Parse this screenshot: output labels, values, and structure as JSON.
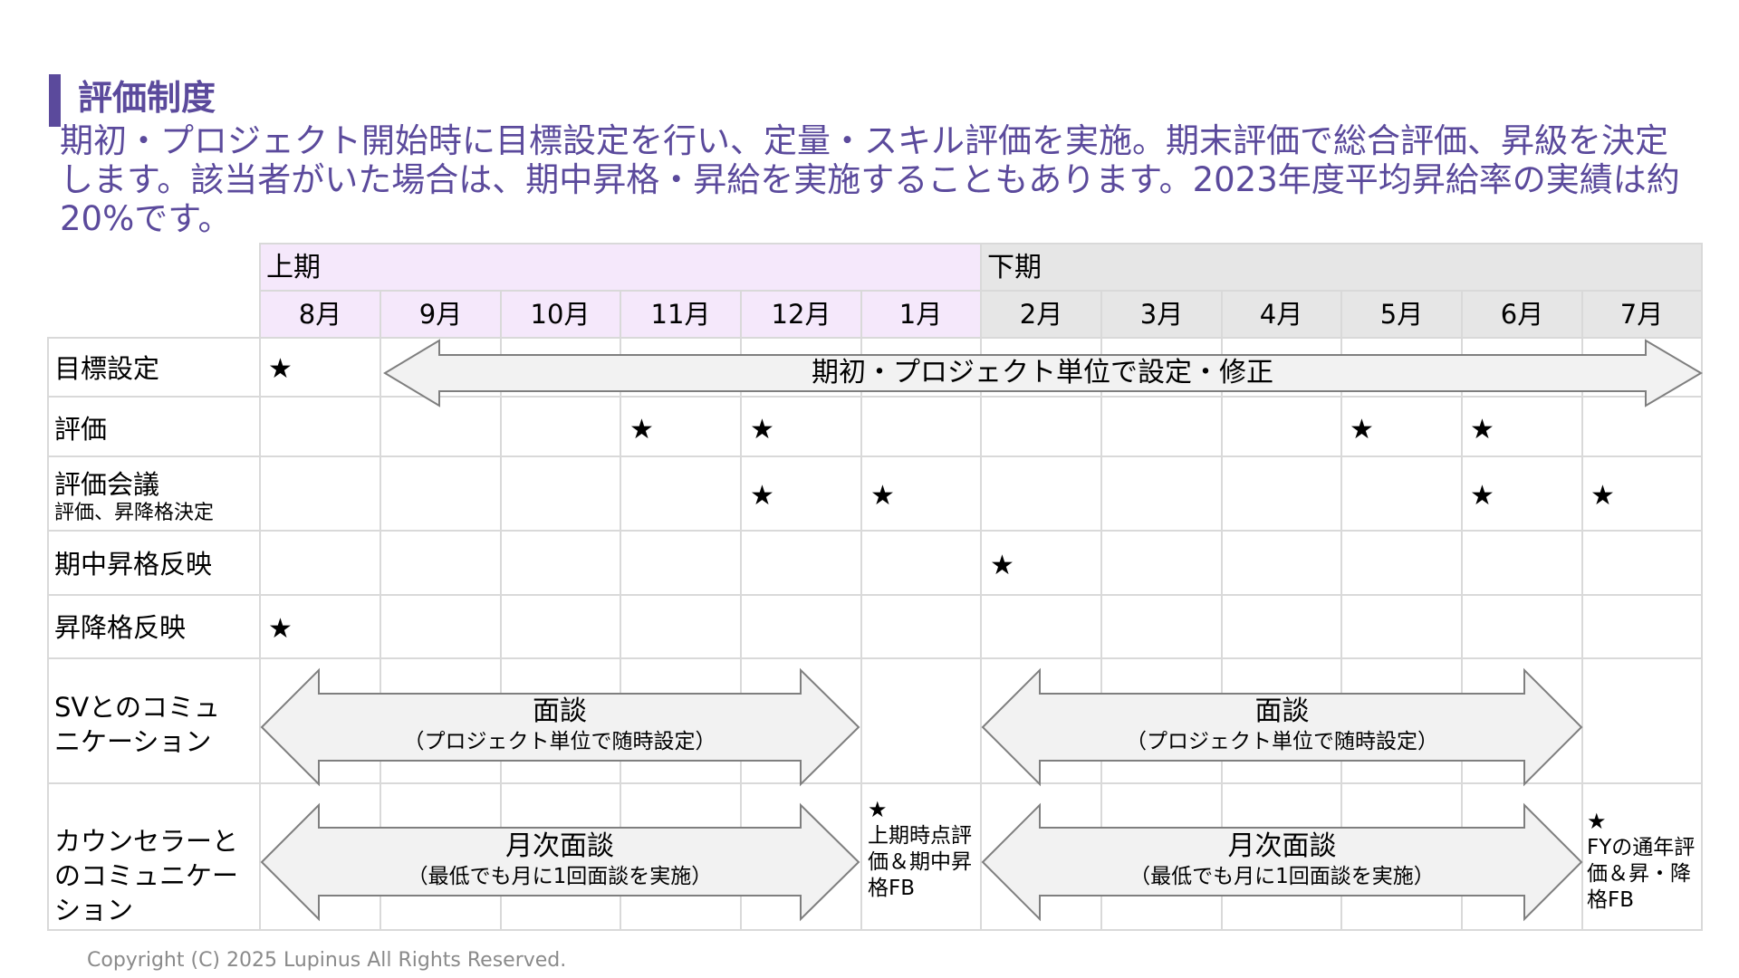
{
  "header": {
    "title": "評価制度",
    "description": "期初・プロジェクト開始時に目標設定を行い、定量・スキル評価を実施。期末評価で総合評価、昇級を決定します。該当者がいた場合は、期中昇格・昇給を実施することもあります。2023年度平均昇給率の実績は約20%です。"
  },
  "table": {
    "period_first": "上期",
    "period_second": "下期",
    "months": [
      "8月",
      "9月",
      "10月",
      "11月",
      "12月",
      "1月",
      "2月",
      "3月",
      "4月",
      "5月",
      "6月",
      "7月"
    ],
    "rows": [
      {
        "label": "目標設定",
        "sub": ""
      },
      {
        "label": "評価",
        "sub": ""
      },
      {
        "label": "評価会議",
        "sub": "評価、昇降格決定"
      },
      {
        "label": "期中昇格反映",
        "sub": ""
      },
      {
        "label": "昇降格反映",
        "sub": ""
      },
      {
        "label": "SVとのコミュニケーション",
        "sub": ""
      },
      {
        "label": "カウンセラーとのコミュニケーション",
        "sub": ""
      }
    ],
    "star_symbol": "★",
    "goal_arrow": "期初・プロジェクト単位で設定・修正",
    "sv_arrow_main": "面談",
    "sv_arrow_sub": "（プロジェクト単位で随時設定）",
    "counselor_arrow_main": "月次面談",
    "counselor_arrow_sub": "（最低でも月に1回面談を実施）",
    "note_january": "上期時点評価＆期中昇格FB",
    "note_july": "FYの通年評価＆昇・降格FB"
  },
  "colors": {
    "accent": "#5b4a9c",
    "first_half_bg": "#f5e8fb",
    "second_half_bg": "#e6e6e6",
    "arrow_fill": "#f2f2f2",
    "arrow_stroke": "#7f7f7f"
  },
  "footer": {
    "copyright": "Copyright (C) 2025 Lupinus All Rights Reserved."
  }
}
